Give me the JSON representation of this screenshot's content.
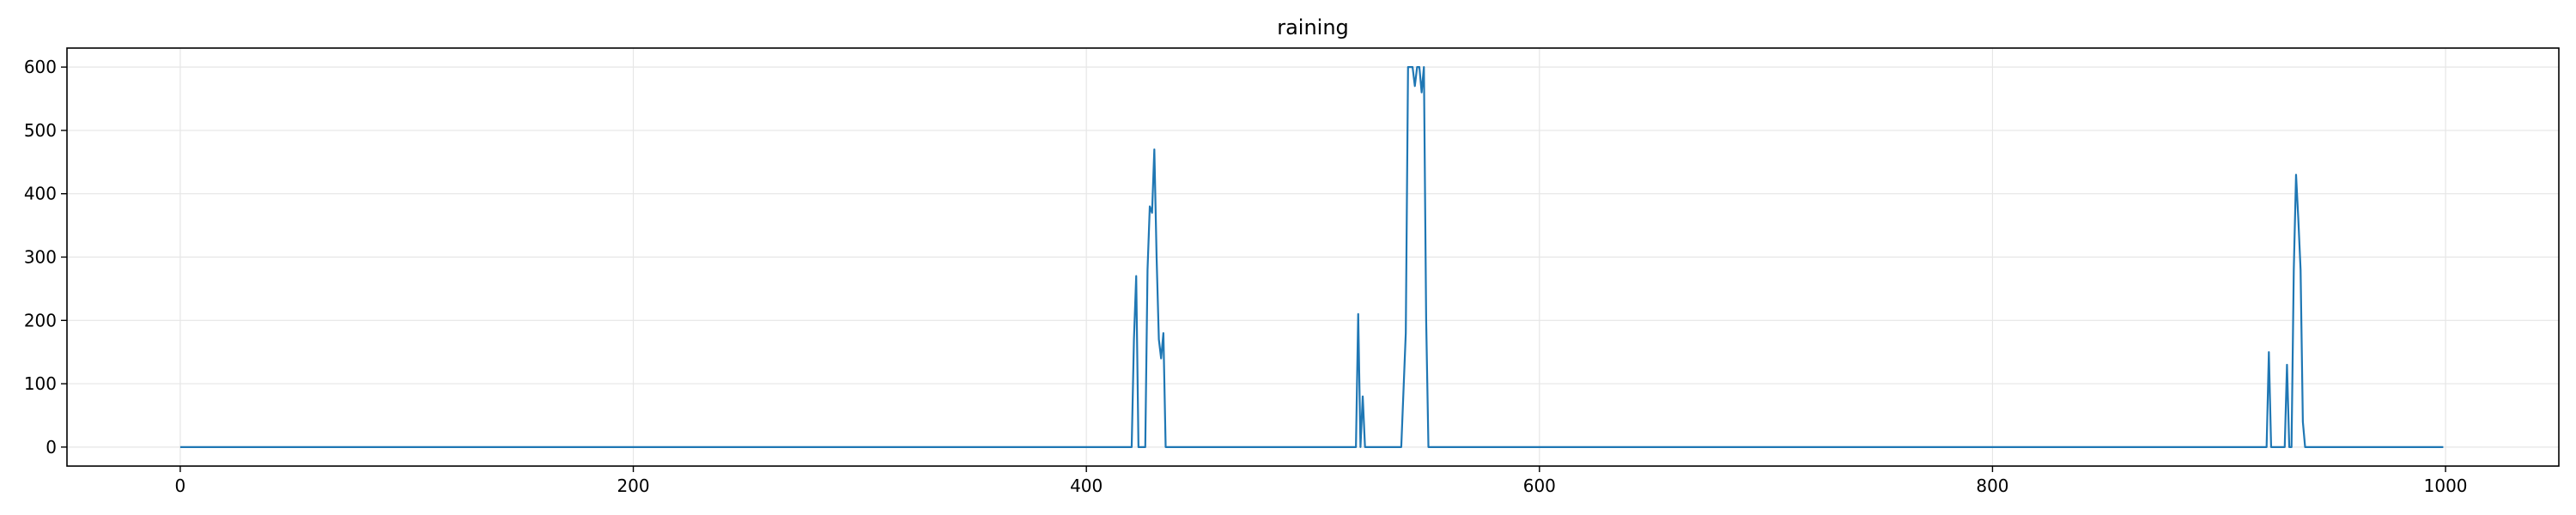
{
  "chart_data": {
    "type": "line",
    "title": "raining",
    "xlabel": "",
    "ylabel": "",
    "xlim": [
      -50,
      1050
    ],
    "ylim": [
      -30,
      630
    ],
    "xticks": [
      0,
      200,
      400,
      600,
      800,
      1000
    ],
    "yticks": [
      0,
      100,
      200,
      300,
      400,
      500,
      600
    ],
    "grid": true,
    "legend": "none",
    "series": [
      {
        "color": "#1f77b4",
        "points": [
          [
            0,
            0
          ],
          [
            420,
            0
          ],
          [
            421,
            170
          ],
          [
            422,
            270
          ],
          [
            423,
            0
          ],
          [
            426,
            0
          ],
          [
            427,
            280
          ],
          [
            428,
            380
          ],
          [
            429,
            370
          ],
          [
            430,
            470
          ],
          [
            431,
            300
          ],
          [
            432,
            170
          ],
          [
            433,
            140
          ],
          [
            434,
            180
          ],
          [
            435,
            0
          ],
          [
            519,
            0
          ],
          [
            520,
            210
          ],
          [
            521,
            0
          ],
          [
            522,
            80
          ],
          [
            523,
            0
          ],
          [
            539,
            0
          ],
          [
            541,
            180
          ],
          [
            542,
            600
          ],
          [
            543,
            600
          ],
          [
            544,
            600
          ],
          [
            545,
            570
          ],
          [
            546,
            600
          ],
          [
            547,
            600
          ],
          [
            548,
            560
          ],
          [
            549,
            600
          ],
          [
            550,
            200
          ],
          [
            551,
            0
          ],
          [
            921,
            0
          ],
          [
            922,
            150
          ],
          [
            923,
            0
          ],
          [
            929,
            0
          ],
          [
            930,
            130
          ],
          [
            931,
            0
          ],
          [
            932,
            0
          ],
          [
            933,
            280
          ],
          [
            934,
            430
          ],
          [
            935,
            360
          ],
          [
            936,
            280
          ],
          [
            937,
            40
          ],
          [
            938,
            0
          ],
          [
            999,
            0
          ]
        ]
      }
    ]
  }
}
